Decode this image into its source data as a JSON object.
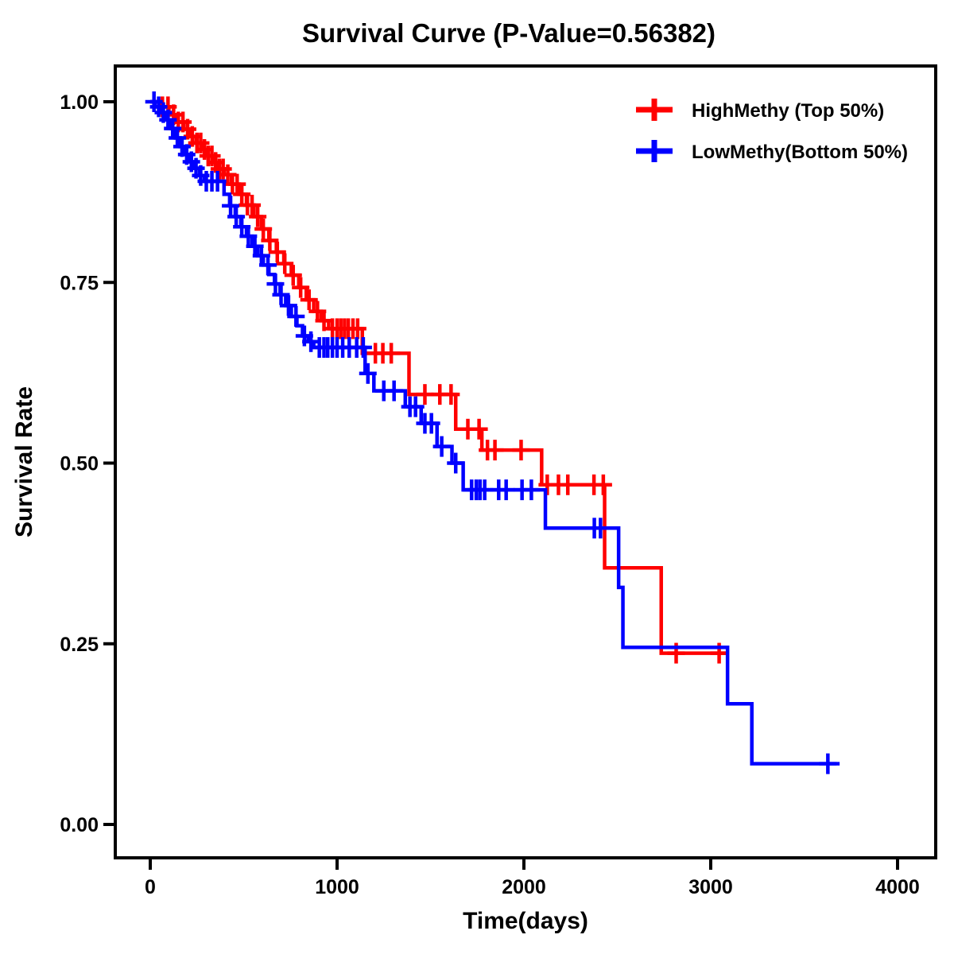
{
  "title": "Survival Curve (P-Value=0.56382)",
  "chart_data": {
    "type": "line",
    "subtype": "kaplan_meier_step_survival",
    "title": "Survival Curve (P-Value=0.56382)",
    "p_value": "0.56382",
    "xlabel": "Time(days)",
    "ylabel": "Survival Rate",
    "xlim": [
      0,
      4000
    ],
    "ylim": [
      0.0,
      1.0
    ],
    "grid": false,
    "legend_position": "top-right-inside",
    "background_color": "#FFFFFF",
    "axis_color": "#000000",
    "x_ticks": [
      {
        "value": 0,
        "label": "0"
      },
      {
        "value": 1000,
        "label": "1000"
      },
      {
        "value": 2000,
        "label": "2000"
      },
      {
        "value": 3000,
        "label": "3000"
      },
      {
        "value": 4000,
        "label": "4000"
      }
    ],
    "y_ticks": [
      {
        "value": 1.0,
        "label": "1.00"
      },
      {
        "value": 0.75,
        "label": "0.75"
      },
      {
        "value": 0.5,
        "label": "0.50"
      },
      {
        "value": 0.25,
        "label": "0.25"
      },
      {
        "value": 0.0,
        "label": "0.00"
      }
    ],
    "series": [
      {
        "id": "highmethy",
        "name": "HighMethy (Top 50%)",
        "color": "#FF0000",
        "steps": [
          [
            0,
            1.0
          ],
          [
            60,
            0.993
          ],
          [
            100,
            0.982
          ],
          [
            140,
            0.972
          ],
          [
            180,
            0.962
          ],
          [
            215,
            0.952
          ],
          [
            245,
            0.943
          ],
          [
            275,
            0.934
          ],
          [
            305,
            0.925
          ],
          [
            335,
            0.916
          ],
          [
            365,
            0.907
          ],
          [
            395,
            0.899
          ],
          [
            435,
            0.886
          ],
          [
            475,
            0.872
          ],
          [
            515,
            0.857
          ],
          [
            555,
            0.841
          ],
          [
            595,
            0.824
          ],
          [
            635,
            0.808
          ],
          [
            675,
            0.792
          ],
          [
            715,
            0.776
          ],
          [
            755,
            0.76
          ],
          [
            795,
            0.743
          ],
          [
            835,
            0.726
          ],
          [
            875,
            0.71
          ],
          [
            915,
            0.697
          ],
          [
            955,
            0.686
          ],
          [
            1135,
            0.652
          ],
          [
            1385,
            0.595
          ],
          [
            1635,
            0.547
          ],
          [
            1775,
            0.518
          ],
          [
            2095,
            0.47
          ],
          [
            2432,
            0.355
          ],
          [
            2735,
            0.237
          ]
        ],
        "end_time": 3082,
        "censor_times": [
          65,
          95,
          125,
          150,
          175,
          200,
          225,
          250,
          270,
          290,
          310,
          330,
          350,
          370,
          390,
          415,
          440,
          465,
          490,
          520,
          545,
          575,
          605,
          640,
          680,
          720,
          765,
          805,
          850,
          895,
          930,
          975,
          1000,
          1020,
          1040,
          1060,
          1085,
          1110,
          1205,
          1245,
          1290,
          1470,
          1550,
          1610,
          1700,
          1760,
          1805,
          1845,
          1985,
          2125,
          2185,
          2235,
          2375,
          2425,
          2815,
          3045
        ]
      },
      {
        "id": "lowmethy",
        "name": "LowMethy(Bottom 50%)",
        "color": "#0000FF",
        "steps": [
          [
            0,
            1.0
          ],
          [
            25,
            0.993
          ],
          [
            55,
            0.985
          ],
          [
            85,
            0.975
          ],
          [
            110,
            0.963
          ],
          [
            135,
            0.95
          ],
          [
            160,
            0.938
          ],
          [
            185,
            0.927
          ],
          [
            210,
            0.917
          ],
          [
            235,
            0.908
          ],
          [
            265,
            0.898
          ],
          [
            290,
            0.89
          ],
          [
            395,
            0.872
          ],
          [
            425,
            0.856
          ],
          [
            455,
            0.841
          ],
          [
            485,
            0.827
          ],
          [
            515,
            0.814
          ],
          [
            545,
            0.8
          ],
          [
            575,
            0.787
          ],
          [
            605,
            0.774
          ],
          [
            635,
            0.761
          ],
          [
            665,
            0.748
          ],
          [
            695,
            0.733
          ],
          [
            725,
            0.718
          ],
          [
            755,
            0.703
          ],
          [
            785,
            0.69
          ],
          [
            815,
            0.676
          ],
          [
            845,
            0.668
          ],
          [
            875,
            0.66
          ],
          [
            1150,
            0.624
          ],
          [
            1197,
            0.6
          ],
          [
            1365,
            0.578
          ],
          [
            1450,
            0.555
          ],
          [
            1535,
            0.523
          ],
          [
            1615,
            0.5
          ],
          [
            1675,
            0.463
          ],
          [
            2115,
            0.41
          ],
          [
            2507,
            0.328
          ],
          [
            2530,
            0.245
          ],
          [
            3090,
            0.167
          ],
          [
            3220,
            0.084
          ]
        ],
        "end_time": 3690,
        "censor_times": [
          20,
          45,
          70,
          95,
          120,
          145,
          170,
          195,
          220,
          245,
          270,
          300,
          330,
          360,
          430,
          460,
          490,
          525,
          560,
          595,
          630,
          670,
          700,
          740,
          780,
          825,
          860,
          905,
          930,
          950,
          975,
          1000,
          1030,
          1065,
          1105,
          1140,
          1165,
          1250,
          1305,
          1390,
          1420,
          1470,
          1505,
          1560,
          1635,
          1720,
          1745,
          1765,
          1790,
          1865,
          1905,
          1990,
          2040,
          2377,
          2410,
          3627
        ]
      }
    ]
  }
}
